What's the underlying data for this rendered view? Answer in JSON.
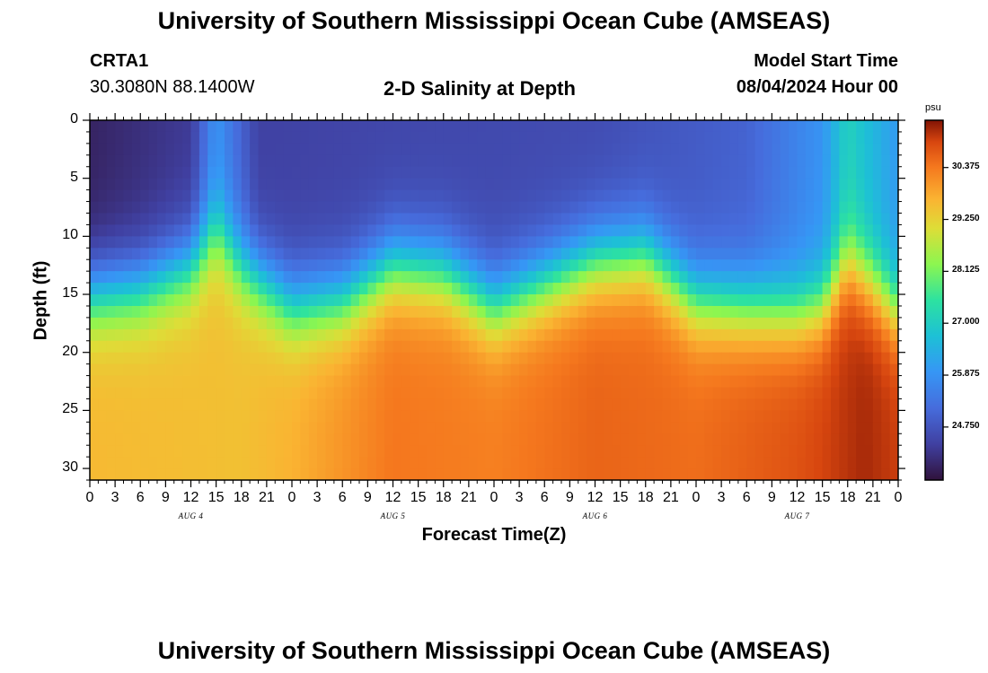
{
  "header": {
    "title": "University of Southern Mississippi Ocean Cube (AMSEAS)",
    "station_id": "CRTA1",
    "station_coords": "30.3080N  88.1400W",
    "plot_title": "2-D Salinity at Depth",
    "model_start_label": "Model Start Time",
    "model_start_value": "08/04/2024 Hour 00"
  },
  "footer": {
    "title": "University of Southern Mississippi Ocean Cube (AMSEAS)"
  },
  "chart_data": {
    "type": "heatmap",
    "title": "2-D Salinity at Depth",
    "xlabel": "Forecast Time(Z)",
    "ylabel": "Depth (ft)",
    "x_tick_labels": [
      "0",
      "3",
      "6",
      "9",
      "12",
      "15",
      "18",
      "21",
      "0",
      "3",
      "6",
      "9",
      "12",
      "15",
      "18",
      "21",
      "0",
      "3",
      "6",
      "9",
      "12",
      "15",
      "18",
      "21",
      "0",
      "3",
      "6",
      "9",
      "12",
      "15",
      "18",
      "21",
      "0"
    ],
    "x_range_hours": [
      0,
      96
    ],
    "day_labels": [
      {
        "hour": 12,
        "label": "AUG 4"
      },
      {
        "hour": 36,
        "label": "AUG 5"
      },
      {
        "hour": 60,
        "label": "AUG 6"
      },
      {
        "hour": 84,
        "label": "AUG 7"
      }
    ],
    "y_ticks": [
      0,
      5,
      10,
      15,
      20,
      25,
      30
    ],
    "y_tick_labels": [
      "0",
      "5",
      "10",
      "15",
      "20",
      "25",
      "30"
    ],
    "ylim": [
      0,
      31
    ],
    "colorbar": {
      "unit": "psu",
      "range": [
        23.6,
        31.4
      ],
      "tick_values": [
        30.375,
        29.25,
        28.125,
        27.0,
        25.875,
        24.75
      ],
      "tick_labels": [
        "30.375",
        "29.250",
        "28.125",
        "27.000",
        "25.875",
        "24.750"
      ]
    },
    "halocline_depth_ft": [
      {
        "hour": 0,
        "depth": 15.0
      },
      {
        "hour": 6,
        "depth": 14.5
      },
      {
        "hour": 12,
        "depth": 12.5
      },
      {
        "hour": 15,
        "depth": 9.5
      },
      {
        "hour": 18,
        "depth": 12.5
      },
      {
        "hour": 24,
        "depth": 16.0
      },
      {
        "hour": 30,
        "depth": 15.5
      },
      {
        "hour": 36,
        "depth": 12.5
      },
      {
        "hour": 42,
        "depth": 13.0
      },
      {
        "hour": 48,
        "depth": 16.0
      },
      {
        "hour": 54,
        "depth": 14.0
      },
      {
        "hour": 60,
        "depth": 12.0
      },
      {
        "hour": 66,
        "depth": 11.5
      },
      {
        "hour": 72,
        "depth": 15.5
      },
      {
        "hour": 78,
        "depth": 16.0
      },
      {
        "hour": 84,
        "depth": 16.5
      },
      {
        "hour": 87,
        "depth": 16.0
      },
      {
        "hour": 90,
        "depth": 12.0
      },
      {
        "hour": 93,
        "depth": 14.0
      },
      {
        "hour": 96,
        "depth": 16.5
      }
    ],
    "surface_salinity_psu": [
      {
        "hour": 0,
        "value": 23.9
      },
      {
        "hour": 12,
        "value": 24.3
      },
      {
        "hour": 15,
        "value": 25.9
      },
      {
        "hour": 20,
        "value": 24.4
      },
      {
        "hour": 36,
        "value": 24.5
      },
      {
        "hour": 60,
        "value": 24.6
      },
      {
        "hour": 78,
        "value": 25.0
      },
      {
        "hour": 87,
        "value": 25.9
      },
      {
        "hour": 90,
        "value": 27.1
      },
      {
        "hour": 96,
        "value": 26.0
      }
    ],
    "bottom_salinity_psu": [
      {
        "hour": 0,
        "value": 29.6
      },
      {
        "hour": 18,
        "value": 29.5
      },
      {
        "hour": 24,
        "value": 29.7
      },
      {
        "hour": 36,
        "value": 30.4
      },
      {
        "hour": 48,
        "value": 30.3
      },
      {
        "hour": 60,
        "value": 30.6
      },
      {
        "hour": 72,
        "value": 30.5
      },
      {
        "hour": 84,
        "value": 30.8
      },
      {
        "hour": 92,
        "value": 31.2
      },
      {
        "hour": 96,
        "value": 31.0
      }
    ]
  }
}
